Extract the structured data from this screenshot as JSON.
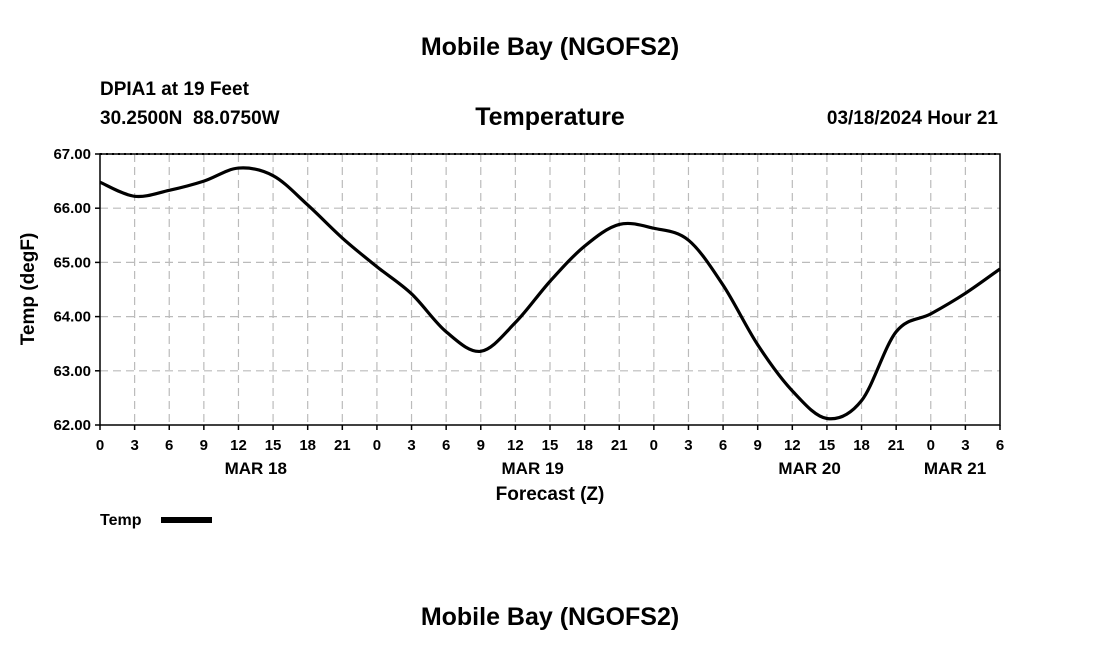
{
  "header": {
    "title": "Mobile Bay (NGOFS2)",
    "station_line": "DPIA1 at 19 Feet",
    "coords_line": "30.2500N  88.0750W",
    "subtitle": "Temperature",
    "timestamp": "03/18/2024 Hour 21"
  },
  "legend": {
    "label": "Temp"
  },
  "footer": {
    "title": "Mobile Bay (NGOFS2)"
  },
  "colors": {
    "line": "#000000",
    "grid": "#bbbbbb",
    "background": "#ffffff"
  },
  "chart_data": {
    "type": "line",
    "title": "Temperature",
    "xlabel": "Forecast (Z)",
    "ylabel": "Temp (degF)",
    "ylim": [
      62.0,
      67.0
    ],
    "y_ticks": [
      "62.00",
      "63.00",
      "64.00",
      "65.00",
      "66.00",
      "67.00"
    ],
    "x_hour_ticks": [
      "0",
      "3",
      "6",
      "9",
      "12",
      "15",
      "18",
      "21",
      "0",
      "3",
      "6",
      "9",
      "12",
      "15",
      "18",
      "21",
      "0",
      "3",
      "6",
      "9",
      "12",
      "15",
      "18",
      "21",
      "0",
      "3",
      "6"
    ],
    "x_date_labels": [
      "MAR 18",
      "MAR 19",
      "MAR 20",
      "MAR 21"
    ],
    "grid": true,
    "legend_position": "bottom-left",
    "series": [
      {
        "name": "Temp",
        "x": [
          "03/18 00Z",
          "03/18 03Z",
          "03/18 06Z",
          "03/18 09Z",
          "03/18 12Z",
          "03/18 15Z",
          "03/18 18Z",
          "03/18 21Z",
          "03/19 00Z",
          "03/19 03Z",
          "03/19 06Z",
          "03/19 09Z",
          "03/19 12Z",
          "03/19 15Z",
          "03/19 18Z",
          "03/19 21Z",
          "03/20 00Z",
          "03/20 03Z",
          "03/20 06Z",
          "03/20 09Z",
          "03/20 12Z",
          "03/20 15Z",
          "03/20 18Z",
          "03/20 21Z",
          "03/21 00Z",
          "03/21 03Z",
          "03/21 06Z"
        ],
        "values": [
          66.48,
          66.22,
          66.33,
          66.5,
          66.74,
          66.6,
          66.06,
          65.45,
          64.92,
          64.42,
          63.72,
          63.36,
          63.89,
          64.65,
          65.3,
          65.7,
          65.63,
          65.41,
          64.58,
          63.48,
          62.63,
          62.12,
          62.45,
          63.72,
          64.05,
          64.43,
          64.88
        ]
      }
    ]
  }
}
